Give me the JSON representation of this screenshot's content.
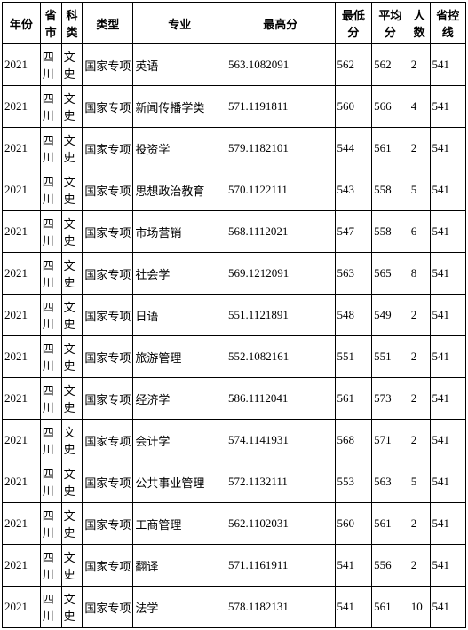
{
  "table": {
    "headers": [
      "年份",
      "省市",
      "科类",
      "类型",
      "专业",
      "最高分",
      "最低分",
      "平均分",
      "人数",
      "省控线"
    ],
    "rows": [
      [
        "2021",
        "四川",
        "文史",
        "国家专项",
        "英语",
        "563.1082091",
        "562",
        "562",
        "2",
        "541"
      ],
      [
        "2021",
        "四川",
        "文史",
        "国家专项",
        "新闻传播学类",
        "571.1191811",
        "560",
        "566",
        "4",
        "541"
      ],
      [
        "2021",
        "四川",
        "文史",
        "国家专项",
        "投资学",
        "579.1182101",
        "544",
        "561",
        "2",
        "541"
      ],
      [
        "2021",
        "四川",
        "文史",
        "国家专项",
        "思想政治教育",
        "570.1122111",
        "543",
        "558",
        "5",
        "541"
      ],
      [
        "2021",
        "四川",
        "文史",
        "国家专项",
        "市场营销",
        "568.1112021",
        "547",
        "558",
        "6",
        "541"
      ],
      [
        "2021",
        "四川",
        "文史",
        "国家专项",
        "社会学",
        "569.1212091",
        "563",
        "565",
        "8",
        "541"
      ],
      [
        "2021",
        "四川",
        "文史",
        "国家专项",
        "日语",
        "551.1121891",
        "548",
        "549",
        "2",
        "541"
      ],
      [
        "2021",
        "四川",
        "文史",
        "国家专项",
        "旅游管理",
        "552.1082161",
        "551",
        "551",
        "2",
        "541"
      ],
      [
        "2021",
        "四川",
        "文史",
        "国家专项",
        "经济学",
        "586.1112041",
        "561",
        "573",
        "2",
        "541"
      ],
      [
        "2021",
        "四川",
        "文史",
        "国家专项",
        "会计学",
        "574.1141931",
        "568",
        "571",
        "2",
        "541"
      ],
      [
        "2021",
        "四川",
        "文史",
        "国家专项",
        "公共事业管理",
        "572.1132111",
        "553",
        "563",
        "5",
        "541"
      ],
      [
        "2021",
        "四川",
        "文史",
        "国家专项",
        "工商管理",
        "562.1102031",
        "560",
        "561",
        "2",
        "541"
      ],
      [
        "2021",
        "四川",
        "文史",
        "国家专项",
        "翻译",
        "571.1161911",
        "541",
        "556",
        "2",
        "541"
      ],
      [
        "2021",
        "四川",
        "文史",
        "国家专项",
        "法学",
        "578.1182131",
        "541",
        "561",
        "10",
        "541"
      ]
    ]
  },
  "style": {
    "border_color": "#000000",
    "background_color": "#ffffff",
    "font_size": 13
  }
}
